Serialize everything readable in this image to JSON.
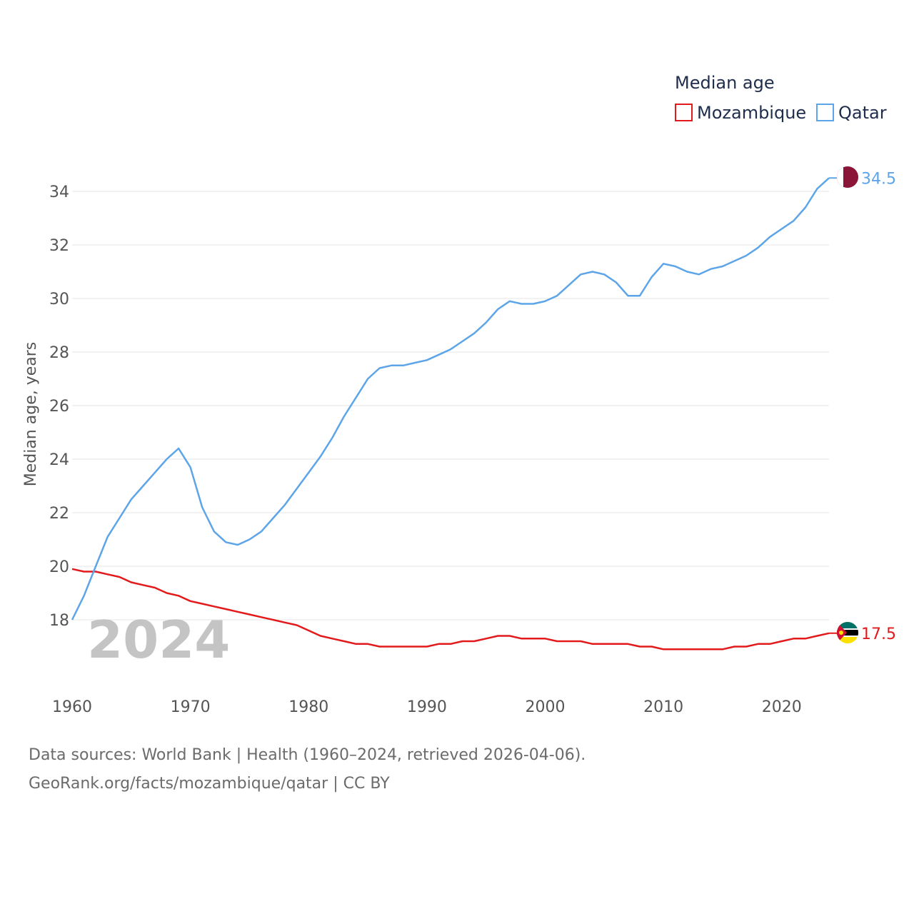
{
  "chart_data": {
    "type": "line",
    "title": "",
    "legend_title": "Median age",
    "legend_position": "top-right",
    "xlabel": "",
    "ylabel": "Median age, years",
    "xlim": [
      1960,
      2024
    ],
    "ylim": [
      16,
      35.5
    ],
    "x_ticks": [
      1960,
      1970,
      1980,
      1990,
      2000,
      2010,
      2020
    ],
    "y_ticks": [
      18,
      20,
      22,
      24,
      26,
      28,
      30,
      32,
      34
    ],
    "grid": true,
    "current_year_label": "2024",
    "x": [
      1960,
      1961,
      1962,
      1963,
      1964,
      1965,
      1966,
      1967,
      1968,
      1969,
      1970,
      1971,
      1972,
      1973,
      1974,
      1975,
      1976,
      1977,
      1978,
      1979,
      1980,
      1981,
      1982,
      1983,
      1984,
      1985,
      1986,
      1987,
      1988,
      1989,
      1990,
      1991,
      1992,
      1993,
      1994,
      1995,
      1996,
      1997,
      1998,
      1999,
      2000,
      2001,
      2002,
      2003,
      2004,
      2005,
      2006,
      2007,
      2008,
      2009,
      2010,
      2011,
      2012,
      2013,
      2014,
      2015,
      2016,
      2017,
      2018,
      2019,
      2020,
      2021,
      2022,
      2023,
      2024
    ],
    "series": [
      {
        "name": "Mozambique",
        "color": "#e31a1c",
        "end_label": "17.5",
        "flag": "mozambique-flag",
        "values": [
          19.9,
          19.8,
          19.8,
          19.7,
          19.6,
          19.4,
          19.3,
          19.2,
          19.0,
          18.9,
          18.7,
          18.6,
          18.5,
          18.4,
          18.3,
          18.2,
          18.1,
          18.0,
          17.9,
          17.8,
          17.6,
          17.4,
          17.3,
          17.2,
          17.1,
          17.1,
          17.0,
          17.0,
          17.0,
          17.0,
          17.0,
          17.1,
          17.1,
          17.2,
          17.2,
          17.3,
          17.4,
          17.4,
          17.3,
          17.3,
          17.3,
          17.2,
          17.2,
          17.2,
          17.1,
          17.1,
          17.1,
          17.1,
          17.0,
          17.0,
          16.9,
          16.9,
          16.9,
          16.9,
          16.9,
          16.9,
          17.0,
          17.0,
          17.1,
          17.1,
          17.2,
          17.3,
          17.3,
          17.4,
          17.5
        ]
      },
      {
        "name": "Qatar",
        "color": "#5da5e8",
        "end_label": "34.5",
        "flag": "qatar-flag",
        "values": [
          18.0,
          18.9,
          20.0,
          21.1,
          21.8,
          22.5,
          23.0,
          23.5,
          24.0,
          24.4,
          23.7,
          22.2,
          21.3,
          20.9,
          20.8,
          21.0,
          21.3,
          21.8,
          22.3,
          22.9,
          23.5,
          24.1,
          24.8,
          25.6,
          26.3,
          27.0,
          27.4,
          27.5,
          27.5,
          27.6,
          27.7,
          27.9,
          28.1,
          28.4,
          28.7,
          29.1,
          29.6,
          29.9,
          29.8,
          29.8,
          29.9,
          30.1,
          30.5,
          30.9,
          31.0,
          30.9,
          30.6,
          30.1,
          30.1,
          30.8,
          31.3,
          31.2,
          31.0,
          30.9,
          31.1,
          31.2,
          31.4,
          31.6,
          31.9,
          32.3,
          32.6,
          32.9,
          33.4,
          34.1,
          34.5
        ]
      }
    ]
  },
  "footer": {
    "sources": "Data sources: World Bank | Health (1960–2024, retrieved 2026-04-06).",
    "credit": "GeoRank.org/facts/mozambique/qatar | CC BY"
  }
}
